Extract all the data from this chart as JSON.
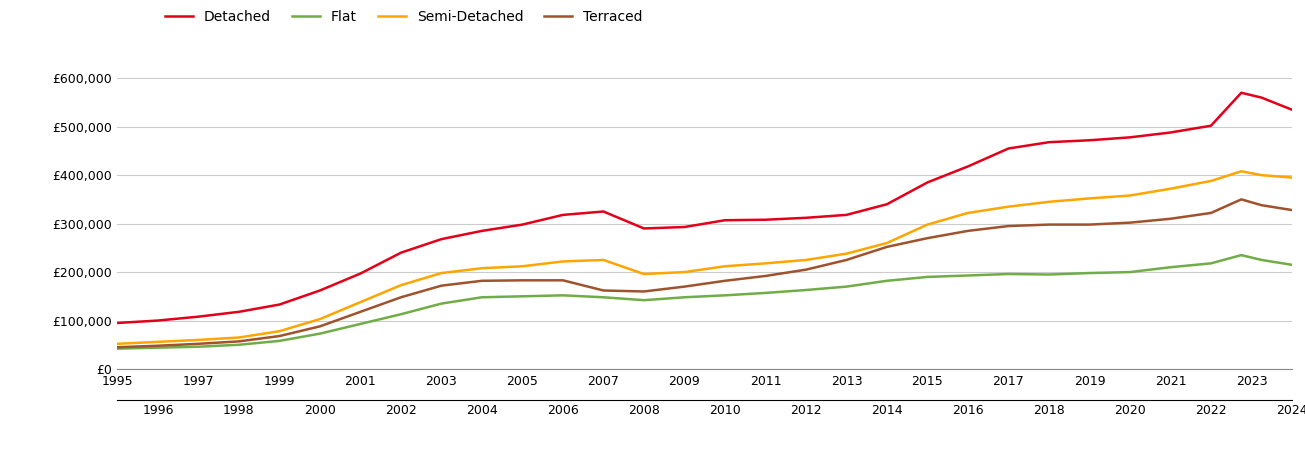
{
  "series": {
    "Detached": {
      "color": "#e2001a",
      "values": [
        95000,
        100000,
        108000,
        118000,
        133000,
        162000,
        197000,
        240000,
        268000,
        285000,
        298000,
        318000,
        325000,
        290000,
        293000,
        307000,
        308000,
        312000,
        318000,
        340000,
        385000,
        418000,
        455000,
        468000,
        472000,
        478000,
        488000,
        502000,
        570000,
        560000,
        535000
      ]
    },
    "Flat": {
      "color": "#70ad47",
      "values": [
        42000,
        44000,
        46000,
        50000,
        58000,
        73000,
        93000,
        113000,
        135000,
        148000,
        150000,
        152000,
        148000,
        142000,
        148000,
        152000,
        157000,
        163000,
        170000,
        182000,
        190000,
        193000,
        196000,
        195000,
        198000,
        200000,
        210000,
        218000,
        235000,
        225000,
        215000
      ]
    },
    "Semi-Detached": {
      "color": "#ffa500",
      "values": [
        52000,
        56000,
        60000,
        65000,
        78000,
        103000,
        138000,
        173000,
        198000,
        208000,
        212000,
        222000,
        225000,
        196000,
        200000,
        212000,
        218000,
        225000,
        238000,
        260000,
        298000,
        322000,
        335000,
        345000,
        352000,
        358000,
        372000,
        388000,
        408000,
        400000,
        395000
      ]
    },
    "Terraced": {
      "color": "#a0522d",
      "values": [
        45000,
        48000,
        52000,
        57000,
        68000,
        88000,
        118000,
        148000,
        172000,
        182000,
        183000,
        183000,
        162000,
        160000,
        170000,
        182000,
        192000,
        205000,
        225000,
        252000,
        270000,
        285000,
        295000,
        298000,
        298000,
        302000,
        310000,
        322000,
        350000,
        338000,
        328000
      ]
    }
  },
  "x_years": [
    1995,
    1996,
    1997,
    1998,
    1999,
    2000,
    2001,
    2002,
    2003,
    2004,
    2005,
    2006,
    2007,
    2008,
    2009,
    2010,
    2011,
    2012,
    2013,
    2014,
    2015,
    2016,
    2017,
    2018,
    2019,
    2020,
    2021,
    2022,
    2022.75,
    2023.25,
    2024
  ],
  "ylim": [
    0,
    650000
  ],
  "yticks": [
    0,
    100000,
    200000,
    300000,
    400000,
    500000,
    600000
  ],
  "odd_xticks": [
    1995,
    1997,
    1999,
    2001,
    2003,
    2005,
    2007,
    2009,
    2011,
    2013,
    2015,
    2017,
    2019,
    2021,
    2023
  ],
  "even_xticks": [
    1996,
    1998,
    2000,
    2002,
    2004,
    2006,
    2008,
    2010,
    2012,
    2014,
    2016,
    2018,
    2020,
    2022,
    2024
  ],
  "bg_color": "#ffffff",
  "grid_color": "#cccccc",
  "line_width": 1.8
}
